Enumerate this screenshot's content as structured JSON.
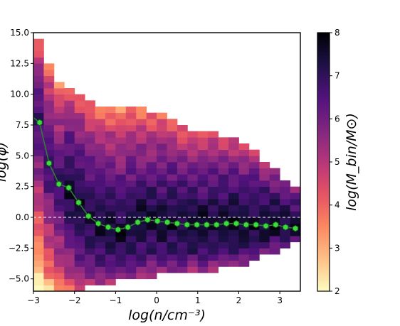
{
  "chart_data": {
    "type": "heatmap",
    "title": "",
    "xlabel": "log(n/cm⁻³)",
    "ylabel": "log(φ)",
    "colorbar_label": "log(M_bin/M⊙)",
    "xlim": [
      -3.0,
      3.5
    ],
    "ylim": [
      -6.0,
      15.0
    ],
    "x_ticks": [
      "−3",
      "−2",
      "−1",
      "0",
      "1",
      "2",
      "3"
    ],
    "y_ticks": [
      "−5.0",
      "−2.5",
      "0.0",
      "2.5",
      "5.0",
      "7.5",
      "10.0",
      "12.5",
      "15.0"
    ],
    "colorbar_range": [
      2,
      8
    ],
    "colorbar_ticks": [
      "2",
      "3",
      "4",
      "5",
      "6",
      "7",
      "8"
    ],
    "colormap": "magma_r",
    "reference_line": {
      "y": 0.0,
      "style": "dashed",
      "color": "#ffffff"
    },
    "series": [
      {
        "type": "line",
        "marker": "hexagon",
        "color": "#2e7d32",
        "marker_color": "#3ddc3d",
        "x": [
          -2.85,
          -2.62,
          -2.38,
          -2.14,
          -1.9,
          -1.66,
          -1.42,
          -1.18,
          -0.94,
          -0.7,
          -0.46,
          -0.22,
          0.02,
          0.26,
          0.5,
          0.74,
          0.98,
          1.22,
          1.46,
          1.7,
          1.94,
          2.18,
          2.42,
          2.66,
          2.9,
          3.14,
          3.38
        ],
        "y": [
          7.7,
          4.4,
          2.7,
          2.4,
          1.2,
          0.1,
          -0.5,
          -0.8,
          -1.0,
          -0.8,
          -0.4,
          -0.2,
          -0.3,
          -0.4,
          -0.5,
          -0.6,
          -0.6,
          -0.6,
          -0.6,
          -0.5,
          -0.5,
          -0.6,
          -0.6,
          -0.7,
          -0.6,
          -0.8,
          -0.9
        ]
      }
    ],
    "heatmap_structure": {
      "x_bins": [
        -3.0,
        3.5,
        0.25
      ],
      "y_bins": [
        -6.0,
        15.0,
        0.5
      ],
      "upper_edge_phi": [
        [
          -3.0,
          15.0
        ],
        [
          -2.75,
          13.6
        ],
        [
          -2.5,
          11.4
        ],
        [
          -2.0,
          10.5
        ],
        [
          -1.5,
          9.3
        ],
        [
          -1.0,
          9.0
        ],
        [
          0.0,
          8.6
        ],
        [
          0.75,
          7.2
        ],
        [
          1.25,
          7.0
        ],
        [
          1.75,
          6.5
        ],
        [
          2.25,
          5.8
        ],
        [
          2.75,
          4.3
        ],
        [
          3.25,
          2.8
        ],
        [
          3.5,
          1.8
        ]
      ],
      "lower_edge_phi": [
        [
          -3.0,
          -6.0
        ],
        [
          -2.5,
          -6.0
        ],
        [
          -2.0,
          -5.8
        ],
        [
          -1.5,
          -5.6
        ],
        [
          -1.0,
          -5.3
        ],
        [
          0.0,
          -4.7
        ],
        [
          1.0,
          -4.4
        ],
        [
          2.0,
          -4.0
        ],
        [
          2.5,
          -3.4
        ],
        [
          3.0,
          -2.6
        ],
        [
          3.5,
          -2.0
        ]
      ]
    }
  }
}
